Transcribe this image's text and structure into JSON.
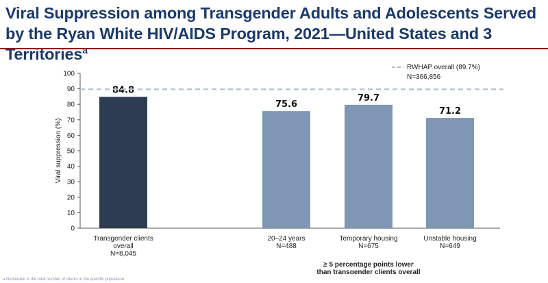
{
  "title_main": "Viral Suppression among Transgender Adults and Adolescents Served by the Ryan White HIV/AIDS Program, 2021—United States and 3 Territories",
  "title_sup": "a",
  "footnote": "a Numerator is the total number of clients in the specific population.",
  "colors": {
    "title": "#1b3a6b",
    "rule": "#8b1a1a",
    "bar_highlight": "#2e3c51",
    "bar_compare": "#7f97b4",
    "reference_line": "#a9bdd4"
  },
  "chart_data": {
    "type": "bar",
    "ylabel": "Viral suppression (%)",
    "ylim": [
      0,
      100
    ],
    "yticks": [
      0,
      10,
      20,
      30,
      40,
      50,
      60,
      70,
      80,
      90,
      100
    ],
    "grid": false,
    "bars": [
      {
        "label_lines": [
          "Transgender clients",
          "overall",
          "N=8,045"
        ],
        "value": 84.8,
        "value_label": "84.8",
        "group": "overall"
      },
      {
        "label_lines": [
          "20–24 years",
          "N=488"
        ],
        "value": 75.6,
        "value_label": "75.6",
        "group": "lower"
      },
      {
        "label_lines": [
          "Temporary housing",
          "N=675"
        ],
        "value": 79.7,
        "value_label": "79.7",
        "group": "lower"
      },
      {
        "label_lines": [
          "Unstable housing",
          "N=649"
        ],
        "value": 71.2,
        "value_label": "71.2",
        "group": "lower"
      }
    ],
    "reference_line": {
      "value": 89.7,
      "label": "RWHAP overall (89.7%)",
      "sublabel": "N=366,856",
      "style": "dashed"
    },
    "group_annotation": [
      "≥ 5 percentage points lower",
      "than transgender clients overall"
    ]
  }
}
